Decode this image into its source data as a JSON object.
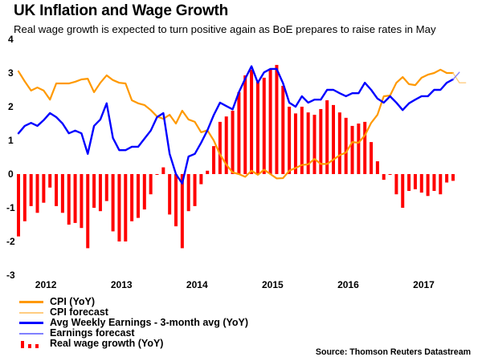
{
  "header": {
    "title": "UK Inflation and Wage Growth",
    "subtitle": "Real wage growth is expected to turn positive again as BoE prepares to raise rates in May"
  },
  "source": "Source: Thomson Reuters Datastream",
  "colors": {
    "cpi": "#ff9900",
    "cpi_forecast": "#ffcc80",
    "earnings": "#0000ff",
    "earnings_forecast": "#8080ff",
    "real_wage": "#ff0000"
  },
  "chart_data": {
    "type": "bar+line",
    "title": "UK Inflation and Wage Growth",
    "subtitle": "Real wage growth is expected to turn positive again as BoE prepares to raise rates in May",
    "xlabel": "",
    "ylabel": "",
    "ylim": [
      -3,
      4
    ],
    "yticks": [
      "4",
      "3",
      "2",
      "1",
      "0",
      "-1",
      "-2",
      "-3"
    ],
    "ytick_values": [
      4,
      3,
      2,
      1,
      0,
      -1,
      -2,
      -3
    ],
    "x_start": "Jan 2012",
    "x_frequency": "monthly",
    "xtick_labels": [
      "2012",
      "2013",
      "2014",
      "2015",
      "2016",
      "2017"
    ],
    "xtick_month_index": [
      5.5,
      17.5,
      29.5,
      41.5,
      53.5,
      65.5
    ],
    "grid": false,
    "legend_position": "bottom-left",
    "legend": [
      {
        "key": "cpi",
        "label": "CPI (YoY)",
        "style": "line"
      },
      {
        "key": "cpi_forecast",
        "label": "CPI forecast",
        "style": "line-thin"
      },
      {
        "key": "earnings",
        "label": "Avg Weekly Earnings - 3-month avg (YoY)",
        "style": "line"
      },
      {
        "key": "earnings_forecast",
        "label": "Earnings forecast",
        "style": "line-thin"
      },
      {
        "key": "real_wage",
        "label": "Real wage growth (YoY)",
        "style": "bars"
      }
    ],
    "series": [
      {
        "key": "real_wage",
        "name": "Real wage growth (YoY)",
        "type": "bar",
        "start_index": 0,
        "values": [
          -1.85,
          -1.4,
          -0.95,
          -1.15,
          -0.85,
          -0.4,
          -0.95,
          -1.15,
          -1.5,
          -1.45,
          -1.6,
          -2.2,
          -1.0,
          -1.1,
          -0.8,
          -1.7,
          -2.0,
          -2.0,
          -1.4,
          -1.3,
          -1.05,
          -0.6,
          -0.02,
          0.2,
          -1.2,
          -1.55,
          -2.2,
          -1.1,
          -0.95,
          -0.3,
          0.1,
          0.83,
          1.55,
          1.71,
          1.88,
          2.43,
          2.93,
          3.1,
          2.74,
          2.86,
          3.1,
          3.24,
          2.62,
          2.0,
          1.8,
          2.0,
          1.83,
          1.76,
          1.93,
          2.19,
          2.05,
          1.83,
          1.67,
          1.43,
          1.5,
          1.55,
          0.95,
          0.38,
          -0.17,
          -0.02,
          -0.6,
          -1.0,
          -0.5,
          -0.45,
          -0.55,
          -0.65,
          -0.5,
          -0.6,
          -0.25,
          -0.2
        ]
      },
      {
        "key": "cpi",
        "name": "CPI (YoY)",
        "type": "line",
        "start_index": 0,
        "values": [
          3.05,
          2.75,
          2.48,
          2.57,
          2.48,
          2.21,
          2.69,
          2.69,
          2.69,
          2.74,
          2.81,
          2.83,
          2.43,
          2.71,
          2.93,
          2.79,
          2.71,
          2.69,
          2.19,
          2.1,
          2.05,
          1.9,
          1.71,
          1.64,
          1.76,
          1.5,
          1.88,
          1.62,
          1.55,
          1.24,
          1.3,
          1.0,
          0.58,
          0.28,
          0.05,
          0.0,
          -0.08,
          0.1,
          -0.02,
          0.13,
          0.0,
          -0.13,
          -0.12,
          0.1,
          0.18,
          0.27,
          0.29,
          0.45,
          0.3,
          0.3,
          0.43,
          0.56,
          0.64,
          0.95,
          0.93,
          1.15,
          1.52,
          1.76,
          2.31,
          2.33,
          2.71,
          2.88,
          2.67,
          2.64,
          2.86,
          2.95,
          3.0,
          3.1,
          3.0,
          3.0
        ]
      },
      {
        "key": "cpi_forecast",
        "name": "CPI forecast",
        "type": "line",
        "start_index": 69,
        "values": [
          3.0,
          2.71,
          2.71
        ]
      },
      {
        "key": "earnings",
        "name": "Avg Weekly Earnings - 3-month avg (YoY)",
        "type": "line",
        "start_index": 0,
        "values": [
          1.21,
          1.43,
          1.52,
          1.43,
          1.6,
          1.81,
          1.69,
          1.5,
          1.21,
          1.29,
          1.21,
          0.6,
          1.43,
          1.62,
          2.1,
          1.07,
          0.71,
          0.71,
          0.81,
          0.81,
          1.05,
          1.29,
          1.69,
          1.81,
          0.6,
          0.0,
          -0.28,
          0.52,
          0.6,
          0.93,
          1.3,
          1.75,
          2.12,
          2.02,
          1.92,
          2.43,
          2.83,
          3.2,
          2.71,
          3.02,
          3.12,
          3.12,
          2.7,
          2.12,
          2.0,
          2.31,
          2.12,
          2.21,
          2.21,
          2.5,
          2.5,
          2.4,
          2.31,
          2.4,
          2.4,
          2.71,
          2.5,
          2.24,
          2.12,
          2.31,
          2.12,
          1.9,
          2.1,
          2.21,
          2.31,
          2.31,
          2.5,
          2.5,
          2.71,
          2.81
        ]
      },
      {
        "key": "earnings_forecast",
        "name": "Earnings forecast",
        "type": "line",
        "start_index": 69,
        "values": [
          2.81,
          3.02
        ]
      }
    ]
  }
}
